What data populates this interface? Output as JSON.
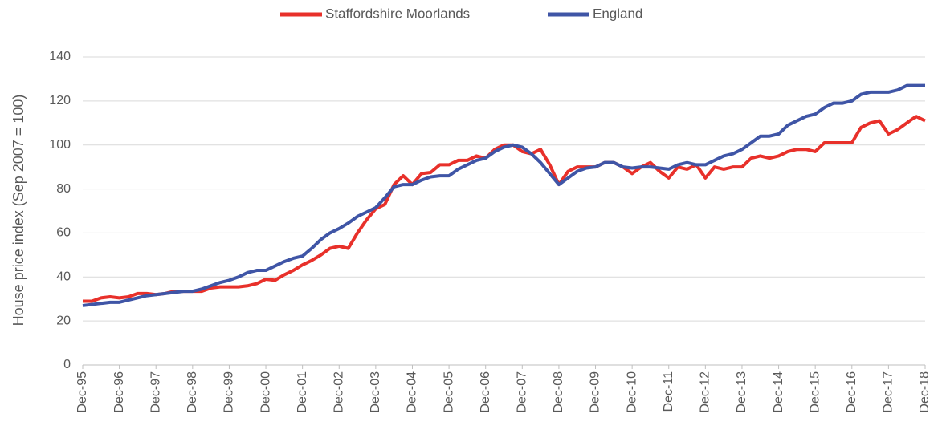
{
  "chart_data": {
    "type": "line",
    "ylabel": "House price index (Sep 2007 = 100)",
    "categories": [
      "Dec-95",
      null,
      null,
      null,
      "Dec-96",
      null,
      null,
      null,
      "Dec-97",
      null,
      null,
      null,
      "Dec-98",
      null,
      null,
      null,
      "Dec-99",
      null,
      null,
      null,
      "Dec-00",
      null,
      null,
      null,
      "Dec-01",
      null,
      null,
      null,
      "Dec-02",
      null,
      null,
      null,
      "Dec-03",
      null,
      null,
      null,
      "Dec-04",
      null,
      null,
      null,
      "Dec-05",
      null,
      null,
      null,
      "Dec-06",
      null,
      null,
      null,
      "Dec-07",
      null,
      null,
      null,
      "Dec-08",
      null,
      null,
      null,
      "Dec-09",
      null,
      null,
      null,
      "Dec-10",
      null,
      null,
      null,
      "Dec-11",
      null,
      null,
      null,
      "Dec-12",
      null,
      null,
      null,
      "Dec-13",
      null,
      null,
      null,
      "Dec-14",
      null,
      null,
      null,
      "Dec-15",
      null,
      null,
      null,
      "Dec-16",
      null,
      null,
      null,
      "Dec-17",
      null,
      null,
      null,
      "Dec-18"
    ],
    "series": [
      {
        "name": "Staffordshire Moorlands",
        "color": "#e8302a",
        "values": [
          29,
          29,
          30.5,
          31,
          30.5,
          31,
          32.5,
          32.5,
          32,
          32.5,
          33.5,
          33.5,
          33.5,
          33.5,
          35,
          35.5,
          35.5,
          35.5,
          36,
          37,
          39,
          38.5,
          41,
          43,
          45.5,
          47.5,
          50,
          53,
          54,
          53,
          60,
          66,
          71,
          73,
          82,
          86,
          82,
          87,
          87.5,
          91,
          91,
          93,
          93,
          95,
          94,
          98,
          100,
          100,
          97,
          96,
          98,
          91,
          82,
          88,
          90,
          90,
          90,
          92,
          92,
          90,
          87,
          90,
          92,
          88,
          85,
          90,
          89,
          91,
          85,
          90,
          89,
          90,
          90,
          94,
          95,
          94,
          95,
          97,
          98,
          98,
          97,
          101,
          101,
          101,
          101,
          108,
          110,
          111,
          105,
          107,
          110,
          113,
          111
        ]
      },
      {
        "name": "England",
        "color": "#3f55a6",
        "values": [
          27,
          27.5,
          28,
          28.5,
          28.5,
          29.5,
          30.5,
          31.5,
          32,
          32.5,
          33,
          33.5,
          33.5,
          34.5,
          36,
          37.5,
          38.5,
          40,
          42,
          43,
          43,
          45,
          47,
          48.5,
          49.5,
          53,
          57,
          60,
          62,
          64.5,
          67.5,
          69.5,
          71.5,
          76,
          81,
          82,
          82,
          84,
          85.5,
          86,
          86,
          89,
          91,
          93,
          94,
          97,
          99,
          100,
          99,
          96,
          92,
          87,
          82,
          85,
          88,
          89.5,
          90,
          92,
          92,
          90,
          89.5,
          90,
          90,
          89.5,
          89,
          91,
          92,
          91,
          91,
          93,
          95,
          96,
          98,
          101,
          104,
          104,
          105,
          109,
          111,
          113,
          114,
          117,
          119,
          119,
          120,
          123,
          124,
          124,
          124,
          125,
          127,
          127,
          127
        ]
      }
    ],
    "ylim": [
      0,
      140
    ],
    "yticks": [
      0,
      20,
      40,
      60,
      80,
      100,
      120,
      140
    ],
    "grid": true,
    "legend": "top"
  }
}
